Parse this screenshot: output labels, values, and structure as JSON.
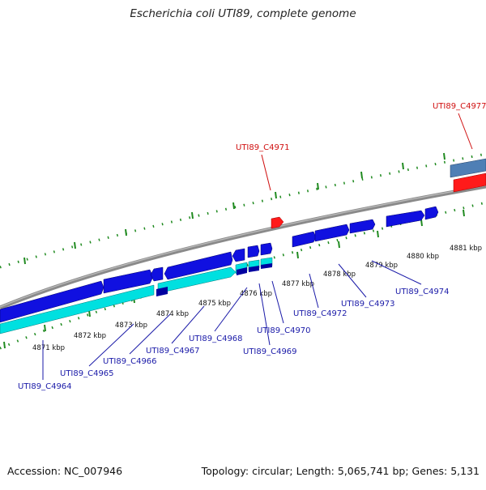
{
  "title": "Escherichia coli UTI89, complete genome",
  "footer": {
    "accession": "Accession: NC_007946",
    "summary": "Topology: circular; Length: 5,065,741 bp; Genes: 5,131"
  },
  "colors": {
    "backbone": "#8a8a8a",
    "tick": "#1f8a1f",
    "forward_cds": "#1010e0",
    "reverse_cds": "#00e0e0",
    "rna": "#ff1a1a",
    "other_feature": "#4f7fb5",
    "label_blue": "#1a1aa8",
    "label_red": "#d01010"
  },
  "scale_labels": [
    "4871 kbp",
    "4872 kbp",
    "4873 kbp",
    "4874 kbp",
    "4875 kbp",
    "4876 kbp",
    "4877 kbp",
    "4878 kbp",
    "4879 kbp",
    "4880 kbp",
    "4881 kbp"
  ],
  "gene_labels": [
    {
      "name": "UTI89_C4964",
      "color": "blue"
    },
    {
      "name": "UTI89_C4965",
      "color": "blue"
    },
    {
      "name": "UTI89_C4966",
      "color": "blue"
    },
    {
      "name": "UTI89_C4967",
      "color": "blue"
    },
    {
      "name": "UTI89_C4968",
      "color": "blue"
    },
    {
      "name": "UTI89_C4969",
      "color": "blue"
    },
    {
      "name": "UTI89_C4970",
      "color": "blue"
    },
    {
      "name": "UTI89_C4971",
      "color": "red"
    },
    {
      "name": "UTI89_C4972",
      "color": "blue"
    },
    {
      "name": "UTI89_C4973",
      "color": "blue"
    },
    {
      "name": "UTI89_C4974",
      "color": "blue"
    },
    {
      "name": "UTI89_C4977",
      "color": "red"
    }
  ]
}
